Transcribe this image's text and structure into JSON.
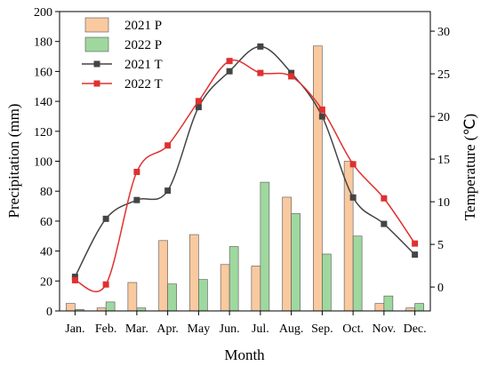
{
  "chart_data": {
    "type": "bar",
    "categories": [
      "Jan.",
      "Feb.",
      "Mar.",
      "Apr.",
      "May",
      "Jun.",
      "Jul.",
      "Aug.",
      "Sep.",
      "Oct.",
      "Nov.",
      "Dec."
    ],
    "xlabel": "Month",
    "ylabel_left": "Precipitation (mm)",
    "ylabel_right": "Temperature (℃)",
    "ylim_left": [
      0,
      200
    ],
    "yticks_left": [
      0,
      20,
      40,
      60,
      80,
      100,
      120,
      140,
      160,
      180,
      200
    ],
    "ylim_right": [
      -2.8,
      32.3
    ],
    "yticks_right": [
      0,
      5,
      10,
      15,
      20,
      25,
      30
    ],
    "legend_position": "top-left",
    "grid": false,
    "series": [
      {
        "name": "2021 P",
        "type": "bar",
        "axis": "left",
        "color": "#f9c9a0",
        "values": [
          5,
          2,
          19,
          47,
          51,
          31,
          30,
          76,
          177,
          100,
          5,
          2
        ]
      },
      {
        "name": "2022 P",
        "type": "bar",
        "axis": "left",
        "color": "#9fd89f",
        "values": [
          1,
          6,
          2,
          18,
          21,
          43,
          86,
          65,
          38,
          50,
          10,
          5
        ]
      },
      {
        "name": "2021 T",
        "type": "line",
        "axis": "right",
        "color": "#444444",
        "marker": "square",
        "values": [
          1.2,
          8.0,
          10.2,
          11.3,
          21.1,
          25.3,
          28.2,
          25.1,
          20.0,
          10.5,
          7.4,
          3.8
        ]
      },
      {
        "name": "2022 T",
        "type": "line",
        "axis": "right",
        "color": "#e03030",
        "marker": "square",
        "values": [
          0.8,
          0.3,
          13.5,
          16.6,
          21.8,
          26.5,
          25.1,
          24.7,
          20.8,
          14.4,
          10.4,
          5.1
        ]
      }
    ]
  }
}
